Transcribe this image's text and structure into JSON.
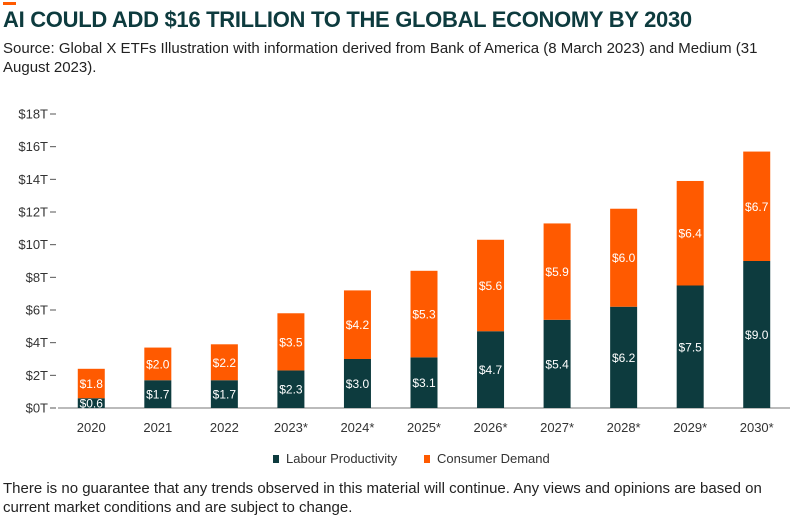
{
  "header": {
    "title": "AI COULD ADD $16 TRILLION TO THE GLOBAL ECONOMY BY 2030",
    "source": "Source: Global X ETFs Illustration with information derived from Bank of America (8 March 2023) and Medium (31 August 2023)."
  },
  "footer": {
    "disclaimer": "There is no guarantee that any trends observed in this material will continue. Any views and opinions are based on current market conditions and are subject to change."
  },
  "chart_data": {
    "type": "bar",
    "stacked": true,
    "categories": [
      "2020",
      "2021",
      "2022",
      "2023*",
      "2024*",
      "2025*",
      "2026*",
      "2027*",
      "2028*",
      "2029*",
      "2030*"
    ],
    "series": [
      {
        "name": "Labour Productivity",
        "color": "#0D3B3E",
        "values": [
          0.6,
          1.7,
          1.7,
          2.3,
          3.0,
          3.1,
          4.7,
          5.4,
          6.2,
          7.5,
          9.0
        ],
        "labels": [
          "$0.6",
          "$1.7",
          "$1.7",
          "$2.3",
          "$3.0",
          "$3.1",
          "$4.7",
          "$5.4",
          "$6.2",
          "$7.5",
          "$9.0"
        ]
      },
      {
        "name": "Consumer Demand",
        "color": "#FF5A00",
        "values": [
          1.8,
          2.0,
          2.2,
          3.5,
          4.2,
          5.3,
          5.6,
          5.9,
          6.0,
          6.4,
          6.7
        ],
        "labels": [
          "$1.8",
          "$2.0",
          "$2.2",
          "$3.5",
          "$4.2",
          "$5.3",
          "$5.6",
          "$5.9",
          "$6.0",
          "$6.4",
          "$6.7"
        ]
      }
    ],
    "ylim": [
      0,
      18
    ],
    "yticks": [
      0,
      2,
      4,
      6,
      8,
      10,
      12,
      14,
      16,
      18
    ],
    "ytick_labels": [
      "$0T",
      "$2T",
      "$4T",
      "$6T",
      "$8T",
      "$10T",
      "$12T",
      "$14T",
      "$16T",
      "$18T"
    ],
    "grid": false,
    "legend_position": "bottom-center"
  }
}
